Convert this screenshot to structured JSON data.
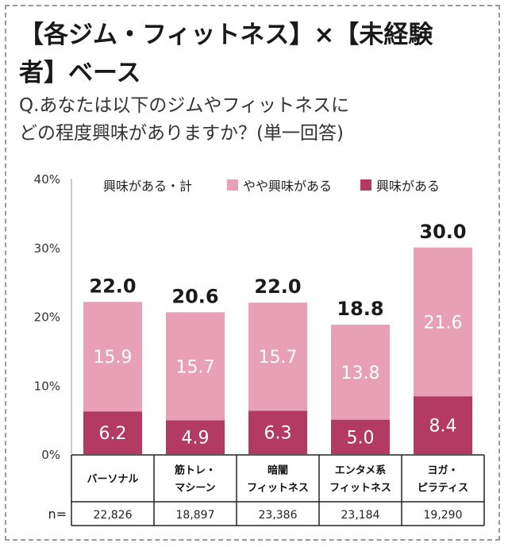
{
  "header": {
    "title_line1": "【各ジム・フィットネス】×【未経験",
    "title_line2": "者】ベース",
    "question_line1": "Q.あなたは以下のジムやフィットネスに",
    "question_line2": "どの程度興味がありますか？(単一回答)"
  },
  "colors": {
    "light_pink": "#e8a0b6",
    "dark_pink": "#b23a63",
    "total_text": "#1a1a1a",
    "axis_text": "#333333"
  },
  "chart_data": {
    "type": "bar",
    "stacked": true,
    "categories": [
      [
        "バーソナル"
      ],
      [
        "筋トレ・",
        "マシーン"
      ],
      [
        "暗闇",
        "フィットネス"
      ],
      [
        "エンタメ系",
        "フィットネス"
      ],
      [
        "ヨガ・",
        "ピラティス"
      ]
    ],
    "series": [
      {
        "name": "興味がある",
        "color": "#b23a63",
        "values": [
          6.2,
          4.9,
          6.3,
          5.0,
          8.4
        ]
      },
      {
        "name": "やや興味がある",
        "color": "#e8a0b6",
        "values": [
          15.9,
          15.7,
          15.7,
          13.8,
          21.6
        ]
      }
    ],
    "totals": {
      "name": "興味がある・計",
      "values": [
        22.0,
        20.6,
        22.0,
        18.8,
        30.0
      ]
    },
    "legend_order": [
      "興味がある・計",
      "やや興味がある",
      "興味がある"
    ],
    "yticks": [
      "0%",
      "10%",
      "20%",
      "30%",
      "40%"
    ],
    "ylim": [
      0,
      40
    ],
    "n_label": "n=",
    "n_values": [
      "22,826",
      "18,897",
      "23,386",
      "23,184",
      "19,290"
    ],
    "legend_position": "top"
  }
}
